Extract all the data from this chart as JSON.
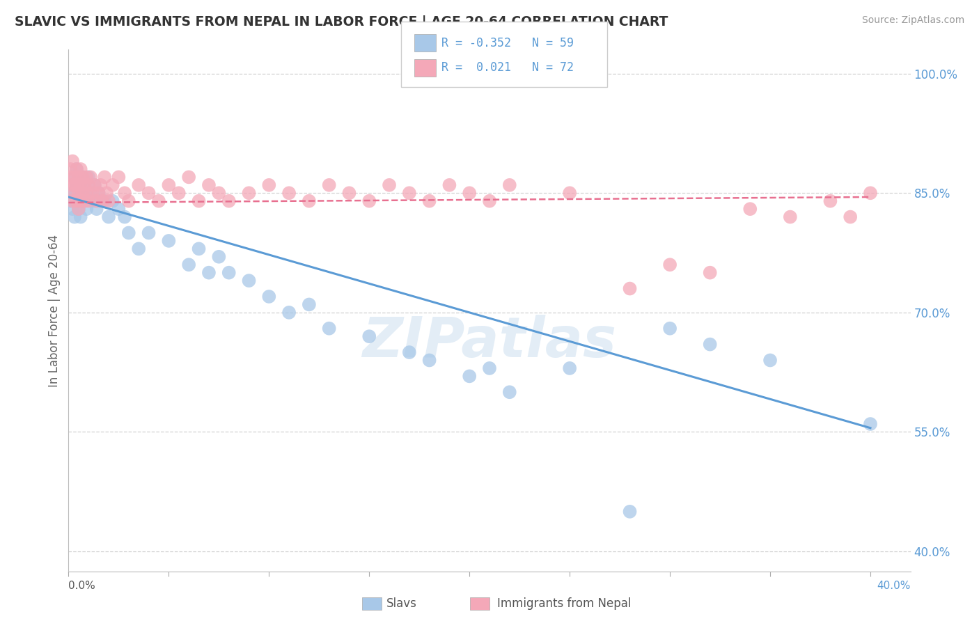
{
  "title": "SLAVIC VS IMMIGRANTS FROM NEPAL IN LABOR FORCE | AGE 20-64 CORRELATION CHART",
  "source": "Source: ZipAtlas.com",
  "ylabel": "In Labor Force | Age 20-64",
  "xlim": [
    0.0,
    0.42
  ],
  "ylim": [
    0.375,
    1.03
  ],
  "yticks": [
    0.4,
    0.55,
    0.7,
    0.85,
    1.0
  ],
  "ytick_labels": [
    "40.0%",
    "55.0%",
    "70.0%",
    "85.0%",
    "100.0%"
  ],
  "xtick_left_label": "0.0%",
  "xtick_right_label": "40.0%",
  "legend_R1": "-0.352",
  "legend_N1": "59",
  "legend_R2": "0.021",
  "legend_N2": "72",
  "color_slavs": "#a8c8e8",
  "color_nepal": "#f4a8b8",
  "color_line_slavs": "#5b9bd5",
  "color_line_nepal": "#e87090",
  "background_color": "#ffffff",
  "grid_color": "#cccccc",
  "watermark": "ZIPatlas",
  "slavs_line_x0": 0.0,
  "slavs_line_y0": 0.845,
  "slavs_line_x1": 0.4,
  "slavs_line_y1": 0.555,
  "nepal_line_x0": 0.0,
  "nepal_line_y0": 0.838,
  "nepal_line_x1": 0.4,
  "nepal_line_y1": 0.845,
  "slavs_scatter_x": [
    0.001,
    0.002,
    0.002,
    0.003,
    0.003,
    0.003,
    0.004,
    0.004,
    0.004,
    0.005,
    0.005,
    0.005,
    0.006,
    0.006,
    0.006,
    0.007,
    0.007,
    0.008,
    0.008,
    0.009,
    0.009,
    0.01,
    0.011,
    0.012,
    0.013,
    0.014,
    0.015,
    0.016,
    0.018,
    0.02,
    0.022,
    0.025,
    0.028,
    0.03,
    0.035,
    0.04,
    0.05,
    0.06,
    0.065,
    0.07,
    0.075,
    0.08,
    0.09,
    0.1,
    0.11,
    0.12,
    0.13,
    0.15,
    0.17,
    0.18,
    0.2,
    0.21,
    0.22,
    0.25,
    0.28,
    0.3,
    0.32,
    0.35,
    0.4
  ],
  "slavs_scatter_y": [
    0.84,
    0.85,
    0.83,
    0.87,
    0.85,
    0.82,
    0.86,
    0.84,
    0.88,
    0.85,
    0.83,
    0.87,
    0.86,
    0.84,
    0.82,
    0.85,
    0.87,
    0.84,
    0.86,
    0.83,
    0.85,
    0.87,
    0.85,
    0.84,
    0.86,
    0.83,
    0.85,
    0.84,
    0.84,
    0.82,
    0.84,
    0.83,
    0.82,
    0.8,
    0.78,
    0.8,
    0.79,
    0.76,
    0.78,
    0.75,
    0.77,
    0.75,
    0.74,
    0.72,
    0.7,
    0.71,
    0.68,
    0.67,
    0.65,
    0.64,
    0.62,
    0.63,
    0.6,
    0.63,
    0.45,
    0.68,
    0.66,
    0.64,
    0.56
  ],
  "nepal_scatter_x": [
    0.001,
    0.001,
    0.002,
    0.002,
    0.002,
    0.003,
    0.003,
    0.003,
    0.004,
    0.004,
    0.004,
    0.005,
    0.005,
    0.005,
    0.006,
    0.006,
    0.006,
    0.007,
    0.007,
    0.008,
    0.008,
    0.009,
    0.009,
    0.01,
    0.01,
    0.011,
    0.012,
    0.013,
    0.014,
    0.015,
    0.016,
    0.017,
    0.018,
    0.019,
    0.02,
    0.022,
    0.025,
    0.028,
    0.03,
    0.035,
    0.04,
    0.045,
    0.05,
    0.055,
    0.06,
    0.065,
    0.07,
    0.075,
    0.08,
    0.09,
    0.1,
    0.11,
    0.12,
    0.13,
    0.14,
    0.15,
    0.16,
    0.17,
    0.18,
    0.19,
    0.2,
    0.21,
    0.22,
    0.25,
    0.28,
    0.3,
    0.32,
    0.34,
    0.36,
    0.38,
    0.4,
    0.39
  ],
  "nepal_scatter_y": [
    0.87,
    0.88,
    0.86,
    0.89,
    0.84,
    0.87,
    0.85,
    0.86,
    0.88,
    0.84,
    0.86,
    0.87,
    0.85,
    0.83,
    0.86,
    0.84,
    0.88,
    0.85,
    0.87,
    0.84,
    0.86,
    0.87,
    0.85,
    0.86,
    0.84,
    0.87,
    0.85,
    0.86,
    0.84,
    0.85,
    0.86,
    0.84,
    0.87,
    0.85,
    0.84,
    0.86,
    0.87,
    0.85,
    0.84,
    0.86,
    0.85,
    0.84,
    0.86,
    0.85,
    0.87,
    0.84,
    0.86,
    0.85,
    0.84,
    0.85,
    0.86,
    0.85,
    0.84,
    0.86,
    0.85,
    0.84,
    0.86,
    0.85,
    0.84,
    0.86,
    0.85,
    0.84,
    0.86,
    0.85,
    0.73,
    0.76,
    0.75,
    0.83,
    0.82,
    0.84,
    0.85,
    0.82
  ]
}
